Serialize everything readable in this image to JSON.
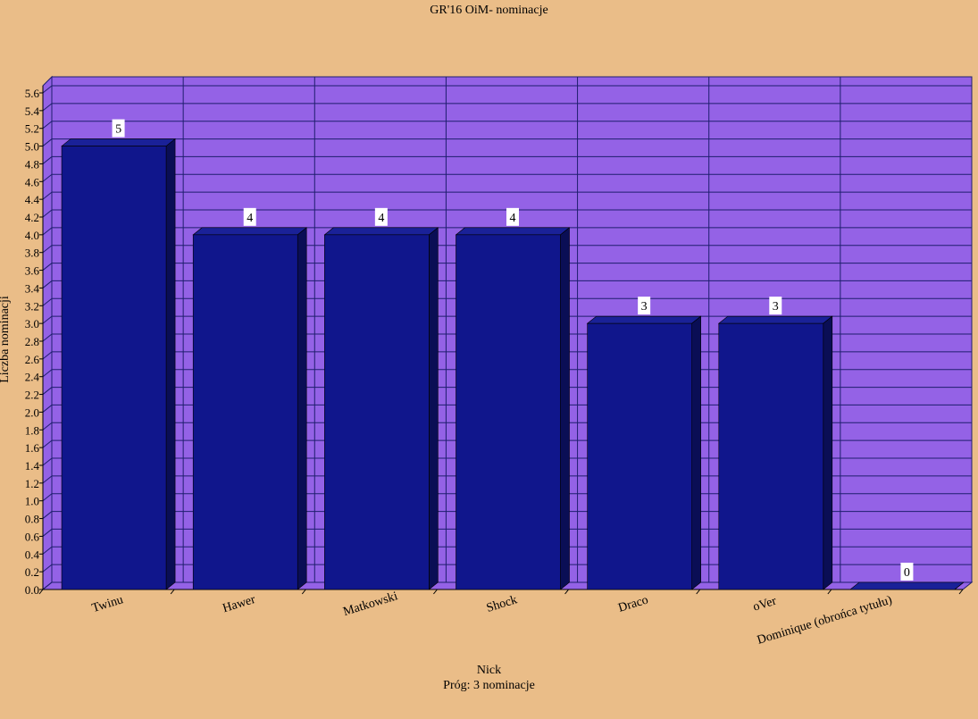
{
  "chart_data": {
    "type": "bar",
    "title": "GR'16 OiM- nominacje",
    "xlabel": "Nick",
    "subtitle": "Próg: 3 nominacje",
    "ylabel": "Liczba nominacji",
    "categories": [
      "Twinu",
      "Hawer",
      "Matkowski",
      "Shock",
      "Draco",
      "oVer",
      "Dominique (obrońca tytułu)"
    ],
    "values": [
      5,
      4,
      4,
      4,
      3,
      3,
      0
    ],
    "ylim": [
      0,
      5.6
    ],
    "ytick_step": 0.2,
    "grid": true,
    "legend": "none",
    "data_labels": true,
    "colors": {
      "background": "#eabd88",
      "plot_area": "#9462e6",
      "bar_front": "#10168c",
      "bar_side": "#0a0e55",
      "bar_top": "#1a2198",
      "grid": "#1e1e6e"
    }
  }
}
